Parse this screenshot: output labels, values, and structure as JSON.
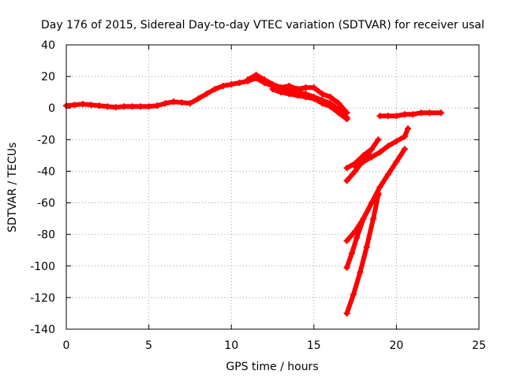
{
  "chart_data": {
    "type": "line",
    "title": "Day 176 of 2015, Sidereal Day-to-day VTEC variation (SDTVAR) for receiver usal",
    "xlabel": "GPS time / hours",
    "ylabel": "SDTVAR / TECUs",
    "xlim": [
      0,
      25
    ],
    "ylim": [
      -140,
      40
    ],
    "xticks": [
      0,
      5,
      10,
      15,
      20,
      25
    ],
    "yticks": [
      40,
      20,
      0,
      -20,
      -40,
      -60,
      -80,
      -100,
      -120,
      -140
    ],
    "grid": true,
    "legend": "none",
    "color": "#ff0000",
    "series": [
      {
        "name": "main-trace",
        "points": [
          [
            0,
            1.5
          ],
          [
            0.5,
            2
          ],
          [
            1,
            2.5
          ],
          [
            1.5,
            2
          ],
          [
            2,
            1.5
          ],
          [
            2.5,
            1
          ],
          [
            3,
            0.5
          ],
          [
            3.5,
            1
          ],
          [
            4,
            1
          ],
          [
            4.5,
            1
          ],
          [
            5,
            1
          ],
          [
            5.5,
            1.5
          ],
          [
            6,
            3
          ],
          [
            6.5,
            4
          ],
          [
            7,
            3.5
          ],
          [
            7.5,
            3
          ],
          [
            8,
            6
          ],
          [
            8.5,
            9
          ],
          [
            9,
            12
          ],
          [
            9.5,
            14
          ],
          [
            10,
            15
          ],
          [
            10.5,
            16
          ],
          [
            11,
            17
          ],
          [
            11.5,
            19
          ],
          [
            12,
            16
          ],
          [
            12.5,
            14
          ],
          [
            13,
            12
          ],
          [
            13.5,
            11
          ],
          [
            14,
            10
          ],
          [
            14.5,
            9
          ],
          [
            15,
            7
          ],
          [
            15.5,
            5
          ],
          [
            16,
            3
          ],
          [
            16.5,
            -1
          ],
          [
            17,
            -6
          ]
        ]
      },
      {
        "name": "main-trace-upper",
        "points": [
          [
            11,
            18
          ],
          [
            11.5,
            21
          ],
          [
            12,
            18
          ],
          [
            12.5,
            15
          ],
          [
            13,
            13
          ],
          [
            13.5,
            14
          ],
          [
            14,
            12
          ],
          [
            14.5,
            13
          ],
          [
            15,
            13
          ],
          [
            15.5,
            9
          ],
          [
            16,
            7
          ],
          [
            16.5,
            3
          ],
          [
            17,
            -3
          ]
        ]
      },
      {
        "name": "main-trace-lower",
        "points": [
          [
            12.5,
            12
          ],
          [
            13,
            10
          ],
          [
            13.5,
            9
          ],
          [
            14,
            8
          ],
          [
            14.5,
            7
          ],
          [
            15,
            6
          ],
          [
            15.5,
            3
          ],
          [
            16,
            1
          ],
          [
            16.5,
            -3
          ],
          [
            17,
            -7
          ]
        ]
      },
      {
        "name": "late-trace",
        "points": [
          [
            19,
            -5
          ],
          [
            19.5,
            -5
          ],
          [
            20,
            -5
          ],
          [
            20.5,
            -4
          ],
          [
            21,
            -4
          ],
          [
            21.5,
            -3
          ],
          [
            22,
            -3
          ],
          [
            22.7,
            -3
          ]
        ]
      },
      {
        "name": "arc-1",
        "points": [
          [
            17,
            -38
          ],
          [
            17.5,
            -35
          ],
          [
            18,
            -30
          ],
          [
            18.5,
            -26
          ]
        ]
      },
      {
        "name": "arc-2",
        "points": [
          [
            17,
            -46
          ],
          [
            17.5,
            -40
          ],
          [
            18,
            -33
          ],
          [
            18.5,
            -26
          ],
          [
            18.9,
            -20
          ]
        ]
      },
      {
        "name": "arc-3",
        "points": [
          [
            17.5,
            -37
          ],
          [
            18,
            -34
          ],
          [
            18.5,
            -31
          ],
          [
            19,
            -28
          ],
          [
            19.5,
            -24
          ],
          [
            20,
            -21
          ],
          [
            20.5,
            -18
          ],
          [
            20.7,
            -13
          ]
        ]
      },
      {
        "name": "arc-4",
        "points": [
          [
            17,
            -84
          ],
          [
            17.5,
            -78
          ],
          [
            18,
            -70
          ],
          [
            18.5,
            -60
          ],
          [
            19,
            -50
          ],
          [
            19.5,
            -42
          ],
          [
            20,
            -34
          ],
          [
            20.5,
            -26
          ]
        ]
      },
      {
        "name": "arc-5",
        "points": [
          [
            17,
            -101
          ],
          [
            17.3,
            -92
          ],
          [
            17.6,
            -82
          ],
          [
            18,
            -70
          ],
          [
            18.5,
            -60
          ],
          [
            18.9,
            -54
          ]
        ]
      },
      {
        "name": "arc-6",
        "points": [
          [
            17,
            -130
          ],
          [
            17.4,
            -118
          ],
          [
            17.8,
            -104
          ],
          [
            18.2,
            -88
          ],
          [
            18.6,
            -70
          ],
          [
            18.9,
            -55
          ]
        ]
      }
    ]
  }
}
